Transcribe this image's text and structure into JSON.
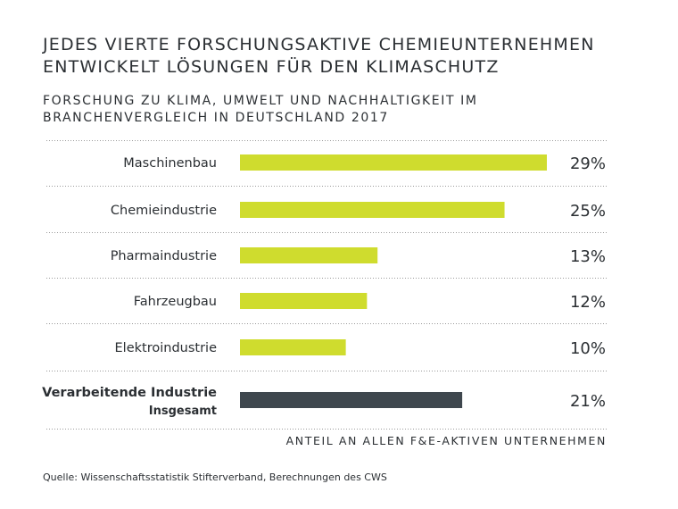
{
  "title_lines": [
    "Jedes vierte forschungsaktive Chemieunternehmen",
    "entwickelt Lösungen für den Klimaschutz"
  ],
  "subtitle_lines": [
    "Forschung zu Klima, Umwelt und Nachhaltigkeit im",
    "Branchenvergleich in Deutschland 2017"
  ],
  "axis_note": "Anteil an allen F&E-aktiven Unternehmen",
  "source": "Quelle: Wissenschaftsstatistik Stifterverband, Berechnungen des CWS",
  "colors": {
    "sector_bar": "#cfdc2e",
    "total_bar": "#3f474e",
    "separator": "#9a9a9a"
  },
  "chart_data": {
    "type": "bar",
    "orientation": "horizontal",
    "title": "Jedes vierte forschungsaktive Chemieunternehmen entwickelt Lösungen für den Klimaschutz",
    "subtitle": "Forschung zu Klima, Umwelt und Nachhaltigkeit im Branchenvergleich in Deutschland 2017",
    "xlabel": "Anteil an allen F&E-aktiven Unternehmen",
    "ylabel": "",
    "xlim": [
      0,
      29
    ],
    "grid": false,
    "legend": "none",
    "value_unit": "%",
    "categories": [
      {
        "label": "Maschinenbau",
        "sublabel": "",
        "value": 29,
        "value_label": "29%",
        "group": "sector"
      },
      {
        "label": "Chemieindustrie",
        "sublabel": "",
        "value": 25,
        "value_label": "25%",
        "group": "sector"
      },
      {
        "label": "Pharmaindustrie",
        "sublabel": "",
        "value": 13,
        "value_label": "13%",
        "group": "sector"
      },
      {
        "label": "Fahrzeugbau",
        "sublabel": "",
        "value": 12,
        "value_label": "12%",
        "group": "sector"
      },
      {
        "label": "Elektroindustrie",
        "sublabel": "",
        "value": 10,
        "value_label": "10%",
        "group": "sector"
      },
      {
        "label": "Verarbeitende Industrie",
        "sublabel": "Insgesamt",
        "value": 21,
        "value_label": "21%",
        "group": "total"
      }
    ]
  }
}
